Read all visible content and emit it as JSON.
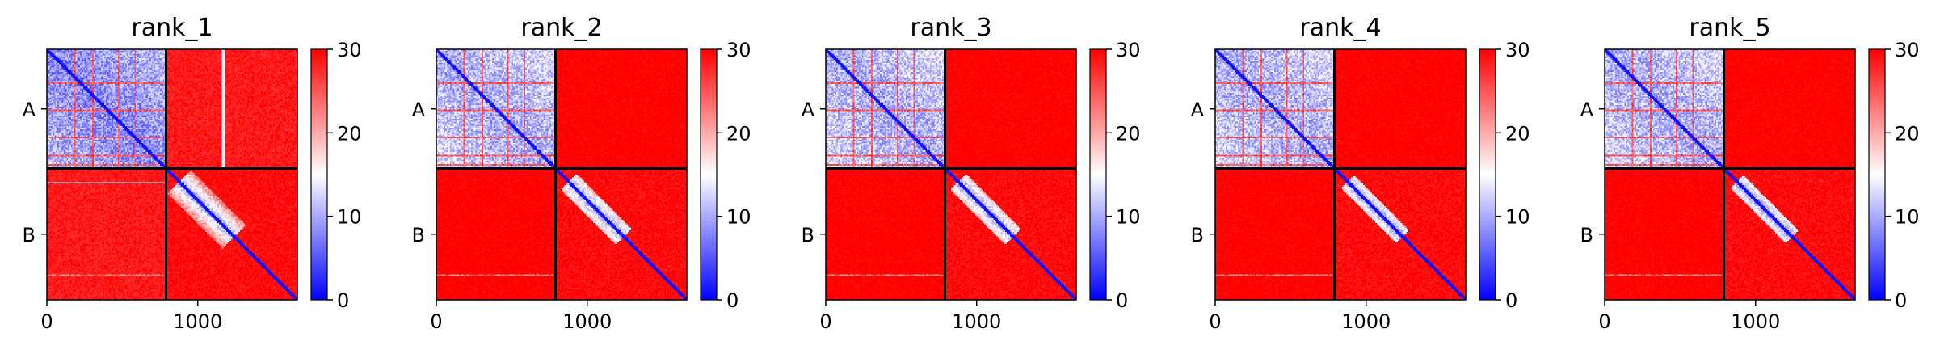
{
  "chart_data": {
    "type": "heatmap",
    "colormap": {
      "name": "bwr",
      "stops": [
        "#0000ff",
        "#ffffff",
        "#ff0000"
      ],
      "range": [
        0,
        30
      ],
      "colorbar_ticks": [
        "0",
        "10",
        "20",
        "30"
      ]
    },
    "x_range": [
      0,
      1660
    ],
    "chain_boundary": 790,
    "x_ticks": [
      {
        "value": 0,
        "label": "0"
      },
      {
        "value": 1000,
        "label": "1000"
      }
    ],
    "y_ticks": [
      {
        "value": 395,
        "label": "A"
      },
      {
        "value": 1225,
        "label": "B"
      }
    ],
    "panels": [
      {
        "title": "rank_1",
        "intra_low_mean": 8,
        "inter_mean": 27,
        "chainB_diag_width": 0.18
      },
      {
        "title": "rank_2",
        "intra_low_mean": 10,
        "inter_mean": 29,
        "chainB_diag_width": 0.12
      },
      {
        "title": "rank_3",
        "intra_low_mean": 10,
        "inter_mean": 29,
        "chainB_diag_width": 0.12
      },
      {
        "title": "rank_4",
        "intra_low_mean": 10,
        "inter_mean": 29,
        "chainB_diag_width": 0.1
      },
      {
        "title": "rank_5",
        "intra_low_mean": 10,
        "inter_mean": 29,
        "chainB_diag_width": 0.1
      }
    ]
  }
}
